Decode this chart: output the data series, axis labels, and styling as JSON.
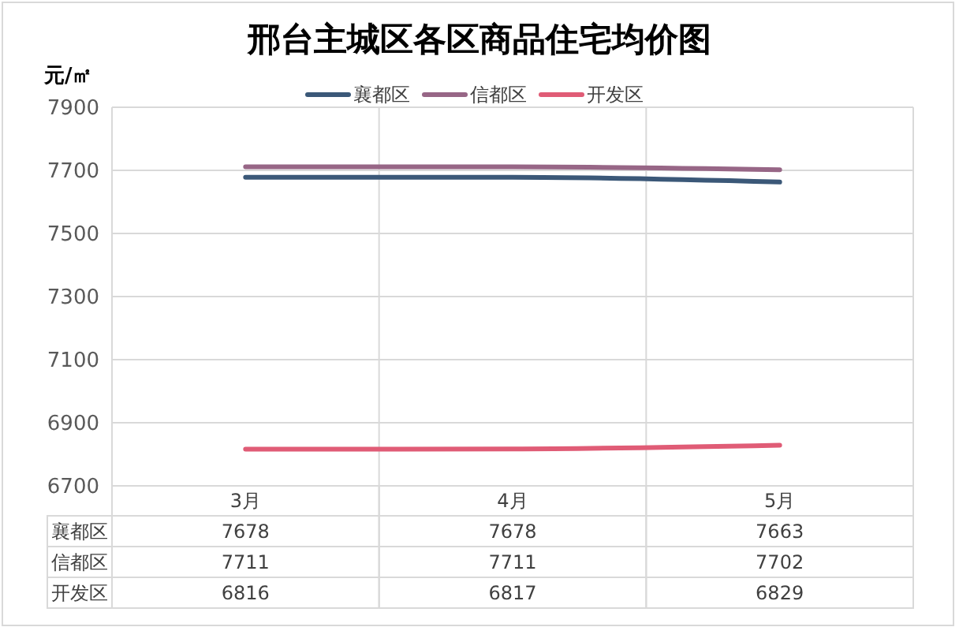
{
  "chart_data": {
    "type": "line",
    "title": "邢台主城区各区商品住宅均价图",
    "ylabel": "元/㎡",
    "categories": [
      "3月",
      "4月",
      "5月"
    ],
    "series": [
      {
        "name": "襄都区",
        "color": "#3b5878",
        "values": [
          7678,
          7678,
          7663
        ]
      },
      {
        "name": "信都区",
        "color": "#976686",
        "values": [
          7711,
          7711,
          7702
        ]
      },
      {
        "name": "开发区",
        "color": "#e05c76",
        "values": [
          6816,
          6817,
          6829
        ]
      }
    ],
    "ylim": [
      6700,
      7900
    ],
    "yticks": [
      6700,
      6900,
      7100,
      7300,
      7500,
      7700,
      7900
    ],
    "grid": true,
    "legend": "top",
    "data_labels": true
  }
}
